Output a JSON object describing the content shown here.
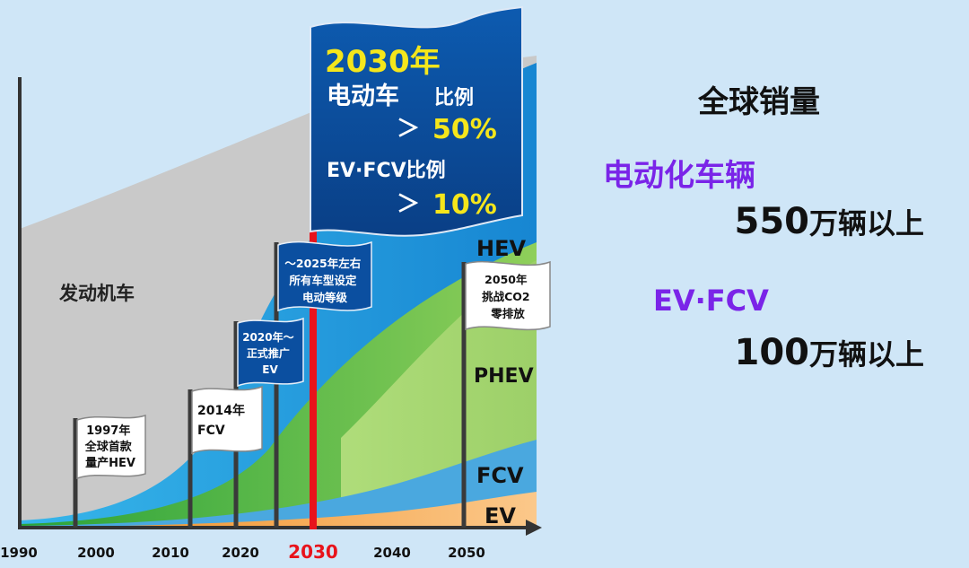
{
  "timeline": {
    "years": [
      "1990",
      "2000",
      "2010",
      "2020",
      "2030",
      "2040",
      "2050"
    ],
    "highlight_year": "2030"
  },
  "areas": {
    "engine": "发动机车",
    "hev": "HEV",
    "phev": "PHEV",
    "fcv": "FCV",
    "ev": "EV"
  },
  "flags": {
    "f1997": [
      "1997年",
      "全球首款",
      "量产HEV"
    ],
    "f2014": [
      "2014年",
      "FCV"
    ],
    "f2020": [
      "2020年～",
      "正式推广",
      "EV"
    ],
    "f2025": [
      "～2025年左右",
      "所有车型设定",
      "电动等级"
    ],
    "f2050": [
      "2050年",
      "挑战CO2",
      "零排放"
    ]
  },
  "big_flag": {
    "year": "2030年",
    "line1": "电动车",
    "line1b": "比例",
    "value1_prefix": "＞",
    "value1": "50%",
    "line2": "EV·FCV比例",
    "value2_prefix": "＞",
    "value2": "10%"
  },
  "summary": {
    "title": "全球销量",
    "electrified_label": "电动化车辆",
    "electrified_value": "550",
    "electrified_unit": "万辆以上",
    "evfcv_label": "EV·FCV",
    "evfcv_value": "100",
    "evfcv_unit": "万辆以上"
  },
  "colors": {
    "background": "#cfe6f7",
    "engine": "#c9c9c9",
    "hev": "#2a9ee0",
    "phev": "#9bd06a",
    "green": "#3db34a",
    "fcv": "#4aa8df",
    "ev": "#f6a23a",
    "highlight": "#e8131b",
    "flag_blue": "#0b4fa0",
    "accent_text": "#f5e61b",
    "purple": "#7a24e8"
  }
}
